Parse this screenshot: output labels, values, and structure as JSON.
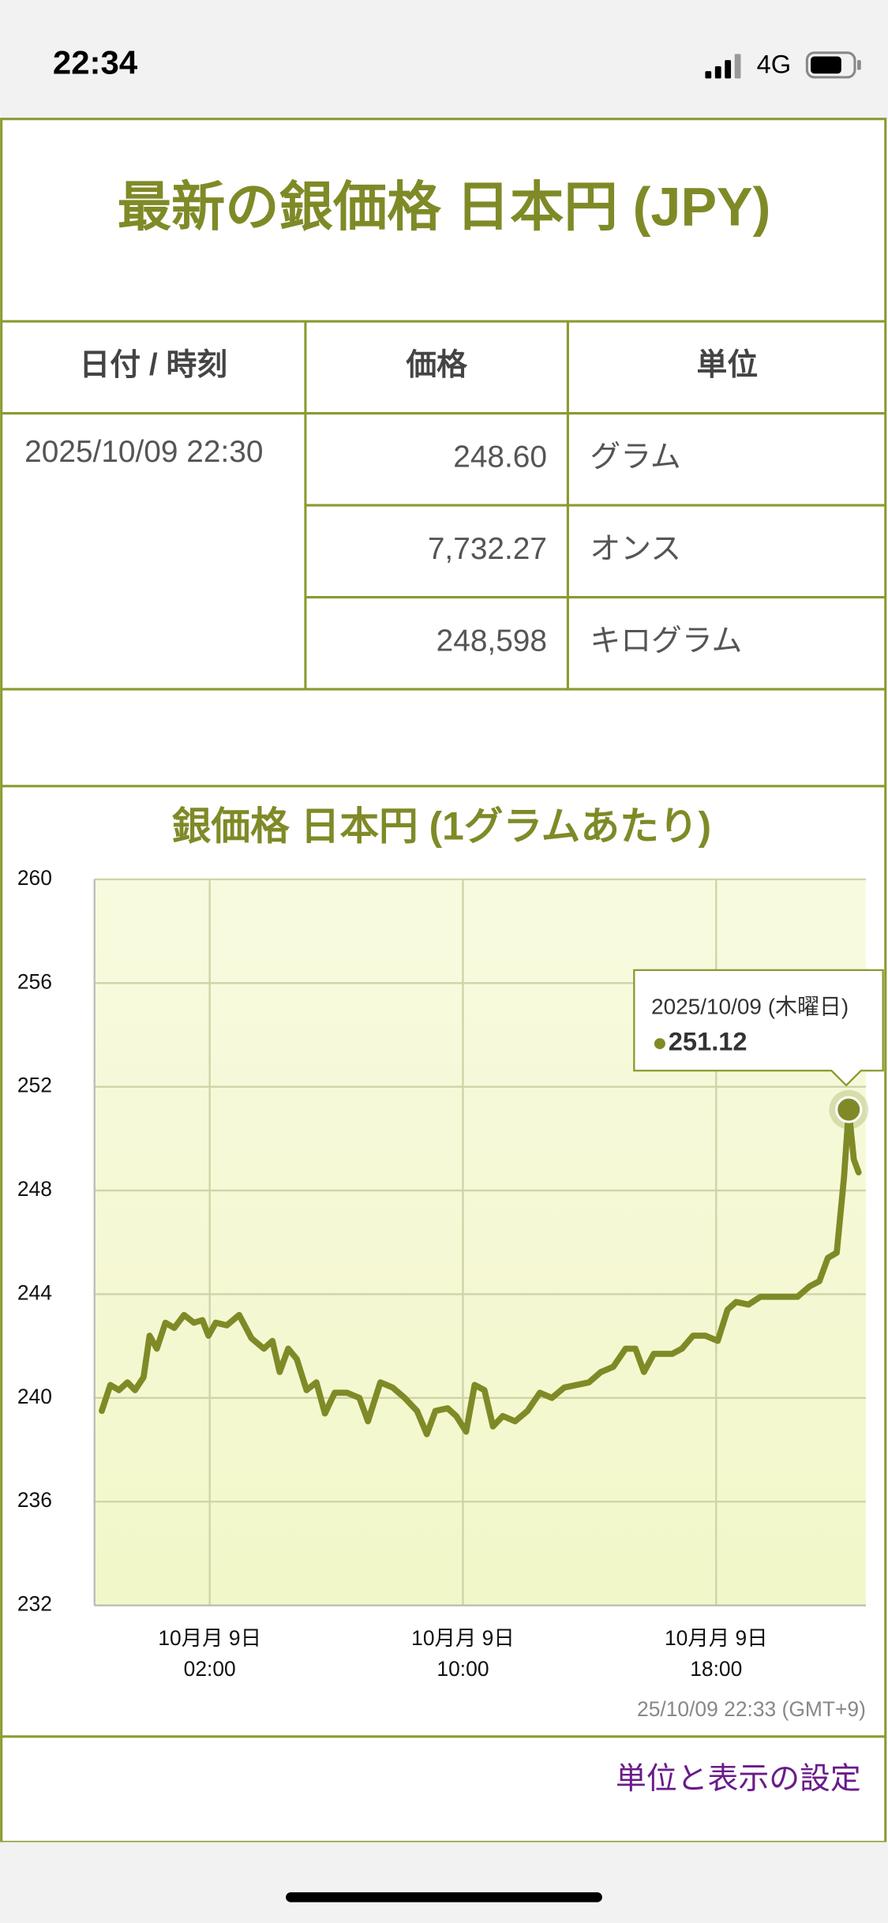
{
  "status_bar": {
    "time": "22:34",
    "network": "4G"
  },
  "header": {
    "title": "最新の銀価格 日本円 (JPY)"
  },
  "table": {
    "headers": [
      "日付 / 時刻",
      "価格",
      "単位"
    ],
    "date": "2025/10/09 22:30",
    "rows": [
      [
        "248.60",
        "グラム"
      ],
      [
        "7,732.27",
        "オンス"
      ],
      [
        "248,598",
        "キログラム"
      ]
    ]
  },
  "chart_data": {
    "type": "line",
    "title": "銀価格 日本円 (1グラムあたり)",
    "color": "#7f8a27",
    "x": [
      -1.41,
      -1.14,
      -0.87,
      -0.6,
      -0.36,
      -0.09,
      0.1,
      0.33,
      0.6,
      0.88,
      1.19,
      1.5,
      1.77,
      1.96,
      2.19,
      2.54,
      2.93,
      3.32,
      3.71,
      3.98,
      4.21,
      4.48,
      4.75,
      5.06,
      5.37,
      5.64,
      5.95,
      6.34,
      6.73,
      7.0,
      7.39,
      7.78,
      8.16,
      8.55,
      8.86,
      9.13,
      9.52,
      9.79,
      10.1,
      10.37,
      10.68,
      10.95,
      11.26,
      11.65,
      12.04,
      12.43,
      12.81,
      13.2,
      13.59,
      13.98,
      14.36,
      14.75,
      15.14,
      15.45,
      15.72,
      16.03,
      16.3,
      16.61,
      16.92,
      17.27,
      17.66,
      18.05,
      18.36,
      18.63,
      19.02,
      19.4,
      19.79,
      20.18,
      20.57,
      20.95,
      21.26,
      21.53,
      21.81,
      22.04,
      22.19,
      22.35,
      22.5
    ],
    "values": [
      239.5,
      240.5,
      240.3,
      240.6,
      240.3,
      240.8,
      242.4,
      241.9,
      242.9,
      242.7,
      243.2,
      242.9,
      243.0,
      242.4,
      242.9,
      242.8,
      243.2,
      242.3,
      241.9,
      242.2,
      241.0,
      241.9,
      241.5,
      240.3,
      240.6,
      239.4,
      240.2,
      240.2,
      240.0,
      239.1,
      240.6,
      240.4,
      240.0,
      239.5,
      238.6,
      239.5,
      239.6,
      239.3,
      238.7,
      240.5,
      240.3,
      238.9,
      239.3,
      239.1,
      239.5,
      240.2,
      240.0,
      240.4,
      240.5,
      240.6,
      241.0,
      241.2,
      241.9,
      241.9,
      241.0,
      241.7,
      241.7,
      241.7,
      241.9,
      242.4,
      242.4,
      242.2,
      243.4,
      243.7,
      243.6,
      243.9,
      243.9,
      243.9,
      243.9,
      244.3,
      244.5,
      245.4,
      245.6,
      248.5,
      251.12,
      249.2,
      248.7
    ],
    "xlim": [
      -1.64,
      22.73
    ],
    "xticks": [
      {
        "value": 2,
        "label": "10月月 9日\n02:00"
      },
      {
        "value": 10,
        "label": "10月月 9日\n10:00"
      },
      {
        "value": 18,
        "label": "10月月 9日\n18:00"
      }
    ],
    "ylim": [
      232,
      260
    ],
    "yticks": [
      232,
      236,
      240,
      244,
      248,
      252,
      256,
      260
    ],
    "grid": true,
    "tooltip": {
      "date": "2025/10/09 (木曜日)",
      "index": 74
    },
    "footnote": "25/10/09 22:33 (GMT+9)"
  },
  "settings_link": "単位と表示の設定"
}
